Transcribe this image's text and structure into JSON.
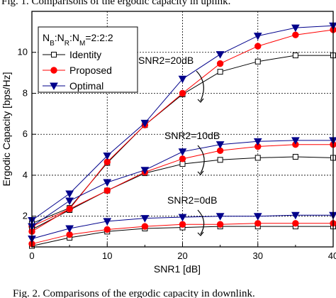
{
  "caption_top": "Fig. 1. Comparisons of the ergodic capacity in uplink.",
  "caption_bottom": "Fig. 2. Comparisons of the ergodic capacity in downlink.",
  "chart_data": {
    "type": "line",
    "xlabel": "SNR1 [dB]",
    "ylabel": "Ergodic Capacity [bps/Hz]",
    "xlim": [
      0,
      40
    ],
    "ylim": [
      0.5,
      12
    ],
    "xticks": [
      0,
      10,
      20,
      30,
      40
    ],
    "yticks": [
      2,
      4,
      6,
      8,
      10
    ],
    "grid": true,
    "legend_position": "top-left",
    "legend_title": "NB:NR:NM=2:2:2",
    "legend_labels": [
      "Identity",
      "Proposed",
      "Optimal"
    ],
    "x": [
      0,
      5,
      10,
      15,
      20,
      25,
      30,
      35,
      40
    ],
    "series": [
      {
        "name": "Identity",
        "group": "SNR2=20dB",
        "color": "#000000",
        "marker": "square-open",
        "values": [
          1.65,
          2.4,
          4.6,
          6.45,
          7.95,
          9.05,
          9.55,
          9.85,
          9.85
        ]
      },
      {
        "name": "Proposed",
        "group": "SNR2=20dB",
        "color": "#ff0000",
        "marker": "circle",
        "values": [
          1.5,
          2.35,
          4.65,
          6.45,
          8.0,
          9.45,
          10.3,
          10.85,
          11.1
        ]
      },
      {
        "name": "Optimal",
        "group": "SNR2=20dB",
        "color": "#00008b",
        "marker": "triangle-down",
        "values": [
          1.8,
          3.1,
          4.95,
          6.55,
          8.7,
          9.9,
          10.8,
          11.2,
          11.3
        ]
      },
      {
        "name": "Identity",
        "group": "SNR2=10dB",
        "color": "#000000",
        "marker": "square-open",
        "values": [
          1.35,
          2.3,
          3.25,
          4.1,
          4.55,
          4.75,
          4.85,
          4.9,
          4.85
        ]
      },
      {
        "name": "Proposed",
        "group": "SNR2=10dB",
        "color": "#ff0000",
        "marker": "circle",
        "values": [
          1.25,
          2.35,
          3.25,
          4.15,
          4.8,
          5.2,
          5.4,
          5.5,
          5.5
        ]
      },
      {
        "name": "Optimal",
        "group": "SNR2=10dB",
        "color": "#00008b",
        "marker": "triangle-down",
        "values": [
          1.5,
          2.75,
          3.65,
          4.25,
          5.15,
          5.5,
          5.65,
          5.7,
          5.7
        ]
      },
      {
        "name": "Identity",
        "group": "SNR2=0dB",
        "color": "#000000",
        "marker": "square-open",
        "values": [
          0.55,
          0.95,
          1.25,
          1.4,
          1.45,
          1.5,
          1.5,
          1.5,
          1.5
        ]
      },
      {
        "name": "Proposed",
        "group": "SNR2=0dB",
        "color": "#ff0000",
        "marker": "circle",
        "values": [
          0.65,
          1.1,
          1.35,
          1.5,
          1.6,
          1.6,
          1.65,
          1.65,
          1.65
        ]
      },
      {
        "name": "Optimal",
        "group": "SNR2=0dB",
        "color": "#00008b",
        "marker": "triangle-down",
        "values": [
          0.9,
          1.4,
          1.75,
          1.9,
          1.95,
          2.0,
          2.0,
          2.05,
          2.05
        ]
      }
    ],
    "annotations": [
      {
        "text": "SNR2=20dB",
        "x": 24,
        "y": 10.0
      },
      {
        "text": "SNR2=10dB",
        "x": 24,
        "y": 6.5
      },
      {
        "text": "SNR2=0dB",
        "x": 25,
        "y": 2.6
      }
    ]
  }
}
